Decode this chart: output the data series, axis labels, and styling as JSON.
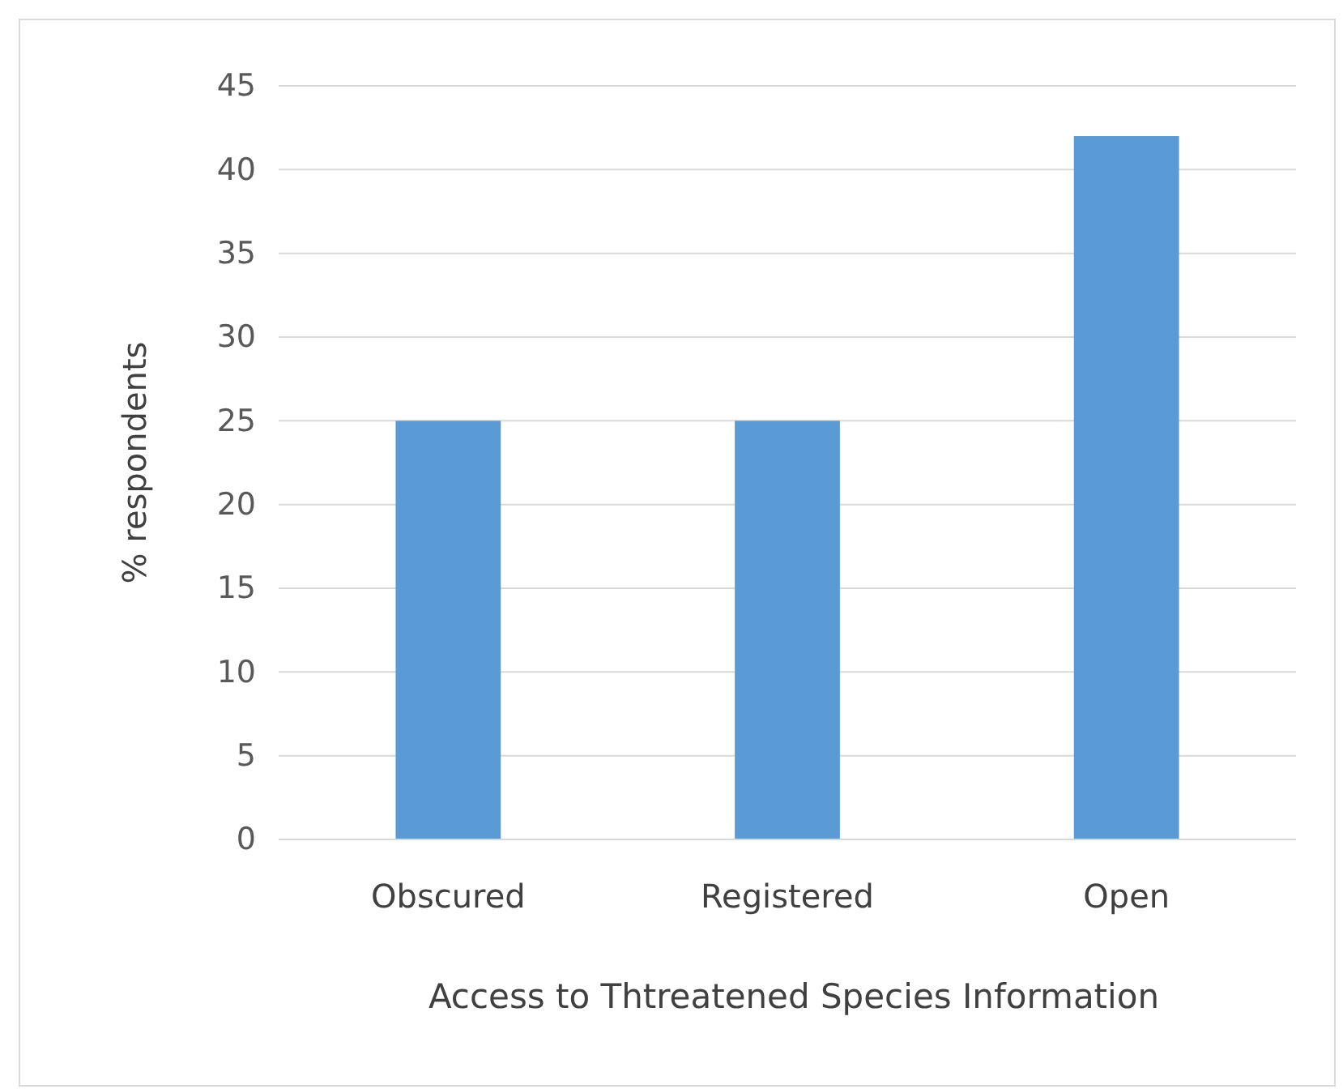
{
  "chart_data": {
    "type": "bar",
    "xlabel": "Access to Thtreatened Species Information",
    "ylabel": "% respondents",
    "categories": [
      "Obscured",
      "Registered",
      "Open"
    ],
    "values": [
      25,
      25,
      42
    ],
    "color": "#5b9bd5",
    "ylim": [
      0,
      45
    ],
    "yticks": [
      0,
      5,
      10,
      15,
      20,
      25,
      30,
      35,
      40,
      45
    ],
    "grid": "y"
  }
}
